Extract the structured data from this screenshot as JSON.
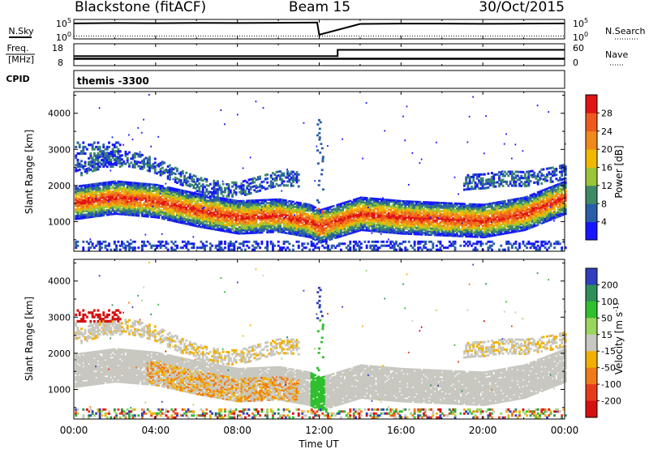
{
  "header": {
    "station": "Blackstone (fitACF)",
    "beam": "Beam 15",
    "date": "30/Oct/2015"
  },
  "chart_data": [
    {
      "type": "line",
      "title": "",
      "left_label": "N.Sky",
      "right_label": "N.Search",
      "left_ticks": [
        "10^5",
        "10^0"
      ],
      "right_ticks": [
        "10^5",
        "10^0"
      ],
      "scale": "log",
      "series": [
        {
          "name": "N.Sky",
          "x": [
            0,
            2,
            4,
            6,
            8,
            10,
            11.9,
            12,
            14,
            16,
            18,
            20,
            22,
            24
          ],
          "y": [
            30000,
            40000,
            35000,
            45000,
            40000,
            50000,
            60000,
            4,
            20000,
            25000,
            25000,
            22000,
            25000,
            30000
          ]
        },
        {
          "name": "N.Search",
          "x": [
            0,
            2,
            4,
            6,
            8,
            10,
            11.9,
            12,
            14,
            16,
            18,
            20,
            22,
            24
          ],
          "y": [
            1.5,
            1.5,
            1.5,
            1.5,
            1.5,
            1.5,
            1.5,
            1.5,
            1.5,
            1.5,
            1.5,
            1.5,
            1.5,
            1.5
          ]
        }
      ]
    },
    {
      "type": "line",
      "title": "",
      "left_label": "Freq.",
      "left_label_units": "[MHz]",
      "right_label": "Nave",
      "left_ticks": [
        "18",
        "8"
      ],
      "right_ticks": [
        "60",
        "0"
      ],
      "ylim_left": [
        8,
        18
      ],
      "ylim_right": [
        0,
        60
      ],
      "series": [
        {
          "name": "Freq.",
          "x": [
            0,
            12.9,
            12.9,
            24
          ],
          "y": [
            10.5,
            10.5,
            10.5,
            10.5
          ]
        },
        {
          "name": "Nave",
          "x": [
            0,
            12.9,
            12.9,
            24
          ],
          "y": [
            24,
            24,
            45,
            45
          ]
        }
      ]
    },
    {
      "type": "table",
      "left_label": "CPID",
      "label": "themis -3300"
    },
    {
      "type": "heatmap",
      "title": "",
      "ylabel": "Slant Range [km]",
      "ylim": [
        180,
        4600
      ],
      "yticks": [
        "1000",
        "2000",
        "3000",
        "4000"
      ],
      "xlim": [
        0,
        24
      ],
      "colorbar_label": "Power [dB]",
      "colorbar_ticks": [
        "4",
        "8",
        "12",
        "16",
        "20",
        "24",
        "28"
      ],
      "colorbar_colors": [
        "#1717ff",
        "#2a5ea8",
        "#3e8a66",
        "#9bc437",
        "#f2b800",
        "#f08a1a",
        "#ee5a1e",
        "#e01414"
      ],
      "features": [
        {
          "label": "main band",
          "x": [
            0,
            2,
            4,
            6,
            8,
            10,
            11.5,
            12,
            14,
            16,
            18,
            20,
            22,
            24
          ],
          "y": [
            1500,
            1650,
            1550,
            1300,
            1100,
            1150,
            1000,
            850,
            1200,
            1100,
            1050,
            1000,
            1200,
            1650
          ]
        }
      ]
    },
    {
      "type": "heatmap",
      "title": "",
      "ylabel": "Slant Range [km]",
      "xlabel": "Time UT",
      "ylim": [
        180,
        4600
      ],
      "yticks": [
        "1000",
        "2000",
        "3000",
        "4000"
      ],
      "xticks": [
        "00:00",
        "04:00",
        "08:00",
        "12:00",
        "16:00",
        "20:00",
        "00:00"
      ],
      "xlim": [
        0,
        24
      ],
      "colorbar_label": "Velocity [m s^-1]",
      "colorbar_ticks": [
        "200",
        "100",
        "50",
        "15",
        "-15",
        "-50",
        "-100",
        "-200"
      ],
      "colorbar_colors": [
        "#2f3fbf",
        "#2e8f5a",
        "#2fbf2f",
        "#9bd65c",
        "#c8c8c0",
        "#f2b100",
        "#f07a1a",
        "#e83a1a",
        "#d61010"
      ]
    }
  ]
}
